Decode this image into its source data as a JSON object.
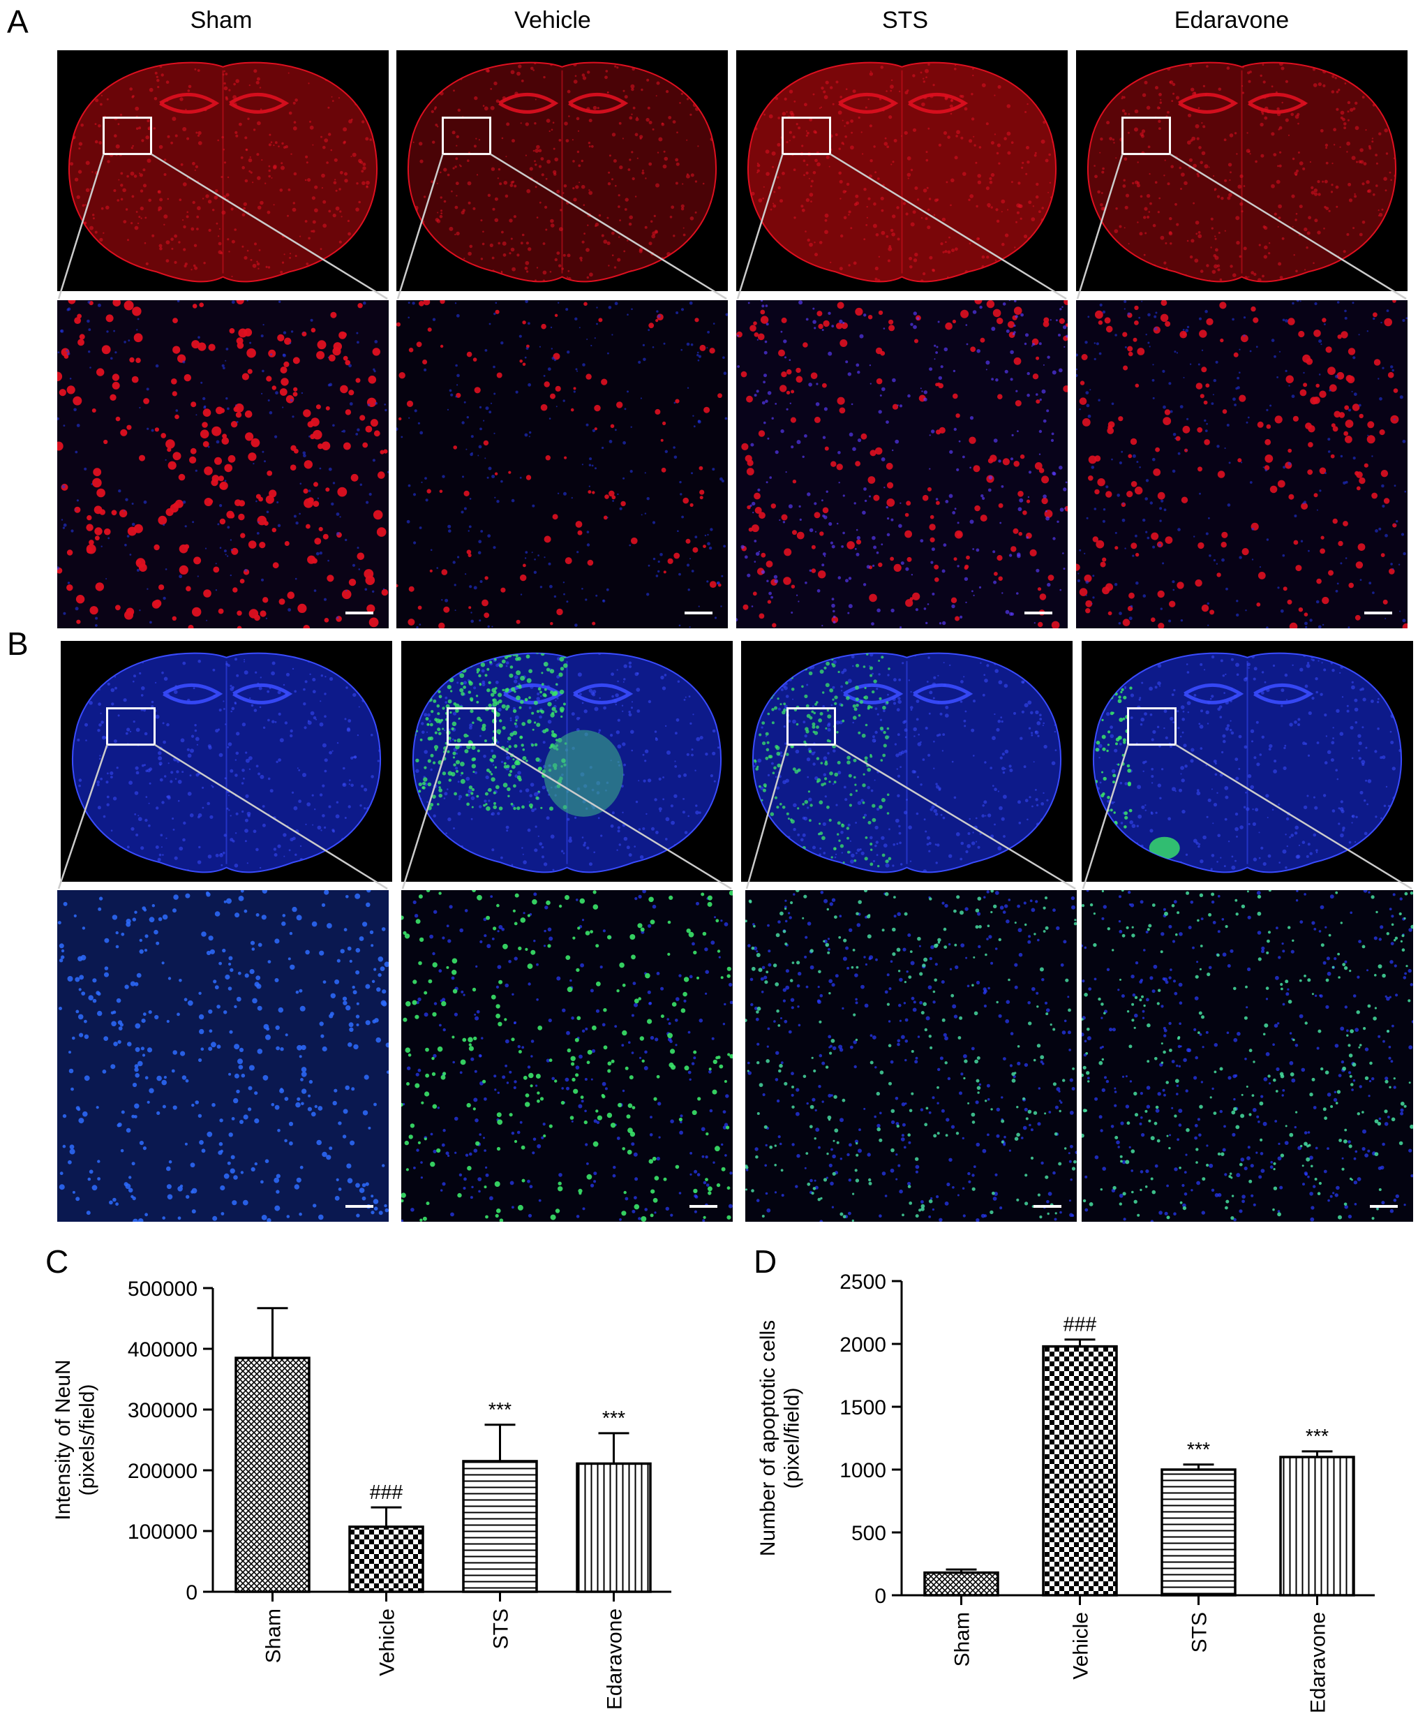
{
  "panels": {
    "A": "A",
    "B": "B",
    "C": "C",
    "D": "D"
  },
  "groups": [
    "Sham",
    "Vehicle",
    "STS",
    "Edaravone"
  ],
  "colors": {
    "neun_red": "#e01020",
    "dapi_blue": "#2233dd",
    "tunel_green": "#3be66a"
  },
  "chart_data": [
    {
      "panel": "C",
      "type": "bar",
      "categories": [
        "Sham",
        "Vehicle",
        "STS",
        "Edaravone"
      ],
      "values": [
        385000,
        107000,
        215000,
        211000
      ],
      "errors": [
        82000,
        32000,
        60000,
        50000
      ],
      "annotations": [
        "",
        "###",
        "***",
        "***"
      ],
      "patterns": [
        "crosshatch",
        "checker",
        "horizontal",
        "vertical"
      ],
      "ylabel": "Intensity of NeuN (pixels/field)",
      "ylabel_lines": [
        "Intensity of NeuN",
        "(pixels/field)"
      ],
      "ylim": [
        0,
        500000
      ],
      "yticks": [
        0,
        100000,
        200000,
        300000,
        400000,
        500000
      ]
    },
    {
      "panel": "D",
      "type": "bar",
      "categories": [
        "Sham",
        "Vehicle",
        "STS",
        "Edaravone"
      ],
      "values": [
        180,
        1980,
        1000,
        1100
      ],
      "errors": [
        25,
        55,
        40,
        45
      ],
      "annotations": [
        "",
        "###",
        "***",
        "***"
      ],
      "patterns": [
        "crosshatch",
        "checker",
        "horizontal",
        "vertical"
      ],
      "ylabel": "Number of apoptotic cells (pixel/field)",
      "ylabel_lines": [
        "Number of apoptotic cells",
        "(pixel/field)"
      ],
      "ylim": [
        0,
        2500
      ],
      "yticks": [
        0,
        500,
        1000,
        1500,
        2000,
        2500
      ]
    }
  ]
}
